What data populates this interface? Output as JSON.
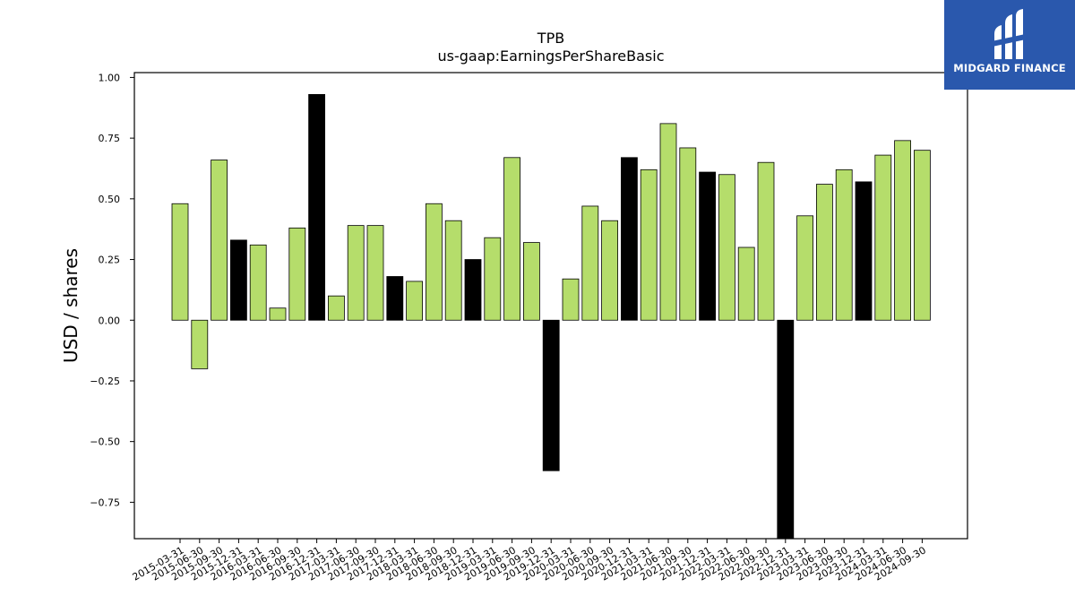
{
  "chart_data": {
    "type": "bar",
    "title": "TPB",
    "subtitle": "us-gaap:EarningsPerShareBasic",
    "xlabel": "",
    "ylabel": "USD / shares",
    "ylim": [
      -0.9,
      1.02
    ],
    "yticks": [
      -0.75,
      -0.5,
      -0.25,
      0.0,
      0.25,
      0.5,
      0.75,
      1.0
    ],
    "ytick_labels": [
      "−0.75",
      "−0.50",
      "−0.25",
      "0.00",
      "0.25",
      "0.50",
      "0.75",
      "1.00"
    ],
    "grid": false,
    "colors": {
      "quarter": "#b5dd6b",
      "annual": "#000000",
      "edge": "#000000"
    },
    "categories": [
      "2015-03-31",
      "2015-06-30",
      "2015-09-30",
      "2015-12-31",
      "2016-03-31",
      "2016-06-30",
      "2016-09-30",
      "2016-12-31",
      "2017-03-31",
      "2017-06-30",
      "2017-09-30",
      "2017-12-31",
      "2018-03-31",
      "2018-06-30",
      "2018-09-30",
      "2018-12-31",
      "2019-03-31",
      "2019-06-30",
      "2019-09-30",
      "2019-12-31",
      "2020-03-31",
      "2020-06-30",
      "2020-09-30",
      "2020-12-31",
      "2021-03-31",
      "2021-06-30",
      "2021-09-30",
      "2021-12-31",
      "2022-03-31",
      "2022-06-30",
      "2022-09-30",
      "2022-12-31",
      "2023-03-31",
      "2023-06-30",
      "2023-09-30",
      "2023-12-31",
      "2024-03-31",
      "2024-06-30",
      "2024-09-30"
    ],
    "values": [
      0.48,
      -0.2,
      0.66,
      0.33,
      0.31,
      0.05,
      0.38,
      0.93,
      0.1,
      0.39,
      0.39,
      0.18,
      0.16,
      0.48,
      0.41,
      0.25,
      0.34,
      0.67,
      0.32,
      -0.62,
      0.17,
      0.47,
      0.41,
      0.67,
      0.62,
      0.81,
      0.71,
      0.61,
      0.6,
      0.3,
      0.65,
      -0.9,
      0.43,
      0.56,
      0.62,
      0.57,
      0.68,
      0.74,
      0.7
    ],
    "bar_kind": [
      "q",
      "q",
      "q",
      "a",
      "q",
      "q",
      "q",
      "a",
      "q",
      "q",
      "q",
      "a",
      "q",
      "q",
      "q",
      "a",
      "q",
      "q",
      "q",
      "a",
      "q",
      "q",
      "q",
      "a",
      "q",
      "q",
      "q",
      "a",
      "q",
      "q",
      "q",
      "a",
      "q",
      "q",
      "q",
      "a",
      "q",
      "q",
      "q"
    ]
  },
  "logo": {
    "text": "MIDGARD FINANCE",
    "icon": "midgard-logo-icon"
  }
}
